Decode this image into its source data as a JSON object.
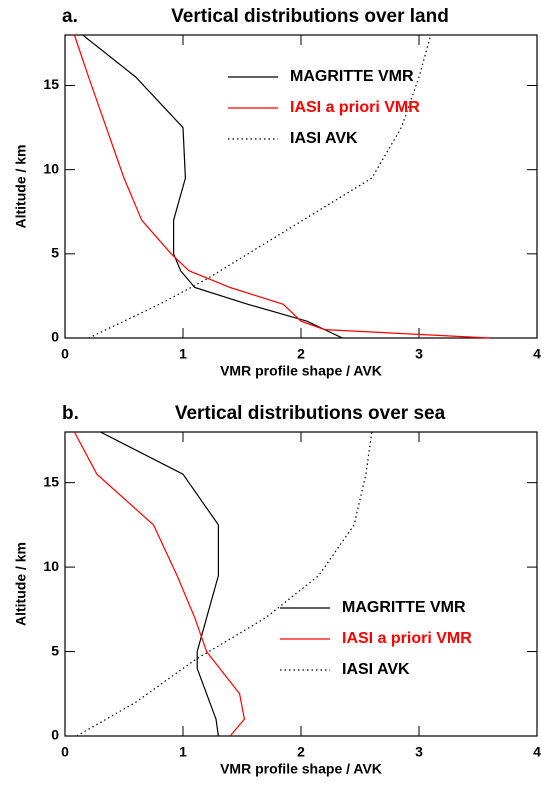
{
  "chart_data": [
    {
      "type": "line",
      "panel_label": "a.",
      "title": "Vertical distributions over land",
      "xlabel": "VMR profile shape / AVK",
      "ylabel": "Altitude / km",
      "xlim": [
        0,
        4
      ],
      "xticks": [
        0,
        1,
        2,
        3,
        4
      ],
      "ylim": [
        0,
        18
      ],
      "yticks": [
        0,
        5,
        10,
        15
      ],
      "legend": "upper center",
      "series": [
        {
          "name": "MAGRITTE VMR",
          "color": "#000000",
          "linestyle": "solid",
          "x": [
            2.35,
            2.05,
            1.55,
            1.1,
            0.98,
            0.92,
            0.92,
            1.02,
            1.0,
            0.6,
            0.15
          ],
          "y": [
            0,
            1,
            2,
            3,
            4,
            5,
            7,
            9.5,
            12.5,
            15.5,
            18
          ]
        },
        {
          "name": "IASI a priori VMR",
          "color": "#ff0000",
          "linestyle": "solid",
          "x": [
            3.6,
            2.2,
            2.0,
            1.85,
            1.4,
            1.05,
            0.9,
            0.65,
            0.5,
            0.35,
            0.2,
            0.08
          ],
          "y": [
            0,
            0.5,
            1,
            2,
            3,
            4,
            5,
            7,
            9.5,
            12.5,
            15.5,
            18
          ]
        },
        {
          "name": "IASI AVK",
          "color": "#000000",
          "linestyle": "dotted",
          "x": [
            0.2,
            0.8,
            1.2,
            1.9,
            2.6,
            2.85,
            3.0,
            3.1
          ],
          "y": [
            0,
            2,
            3.5,
            6.5,
            9.5,
            12.5,
            15.5,
            18
          ]
        }
      ]
    },
    {
      "type": "line",
      "panel_label": "b.",
      "title": "Vertical distributions over sea",
      "xlabel": "VMR profile shape / AVK",
      "ylabel": "Altitude / km",
      "xlim": [
        0,
        4
      ],
      "xticks": [
        0,
        1,
        2,
        3,
        4
      ],
      "ylim": [
        0,
        18
      ],
      "yticks": [
        0,
        5,
        10,
        15
      ],
      "legend": "lower right",
      "series": [
        {
          "name": "MAGRITTE VMR",
          "color": "#000000",
          "linestyle": "solid",
          "x": [
            1.3,
            1.28,
            1.2,
            1.12,
            1.12,
            1.2,
            1.3,
            1.3,
            1.0,
            0.3
          ],
          "y": [
            0,
            1,
            2.5,
            4,
            5,
            7,
            9.5,
            12.5,
            15.5,
            18
          ]
        },
        {
          "name": "IASI a priori VMR",
          "color": "#ff0000",
          "linestyle": "solid",
          "x": [
            1.4,
            1.52,
            1.48,
            1.2,
            1.1,
            0.95,
            0.75,
            0.27,
            0.08
          ],
          "y": [
            0,
            1,
            2.5,
            5,
            7,
            9.5,
            12.5,
            15.5,
            18
          ]
        },
        {
          "name": "IASI AVK",
          "color": "#000000",
          "linestyle": "dotted",
          "x": [
            0.1,
            0.6,
            1.1,
            1.7,
            2.15,
            2.45,
            2.55,
            2.6
          ],
          "y": [
            0,
            2,
            4.5,
            7,
            9.5,
            12.5,
            15.5,
            18
          ]
        }
      ]
    }
  ]
}
